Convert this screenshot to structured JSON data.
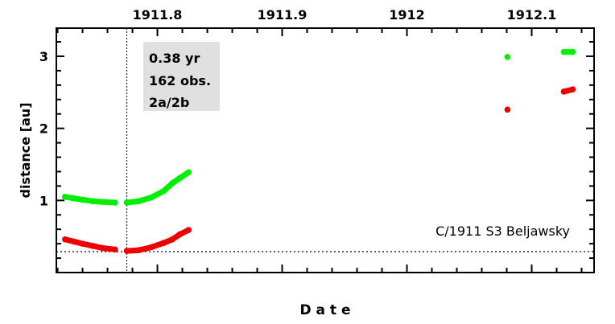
{
  "chart_data": {
    "type": "scatter",
    "title": "",
    "xlabel": "D a t e",
    "ylabel": "distance [au]",
    "xlim": [
      1911.719,
      1912.15
    ],
    "ylim": [
      0,
      3.39
    ],
    "x_ticks": [
      1911.8,
      1911.9,
      1912,
      1912.1
    ],
    "x_tick_labels": [
      "1911.8",
      "1911.9",
      "1912",
      "1912.1"
    ],
    "y_ticks": [
      1,
      2,
      3
    ],
    "y_tick_labels": [
      "1",
      "2",
      "3"
    ],
    "grid": false,
    "colors": {
      "green": "#00ee00",
      "red": "#ee0000"
    },
    "vline_x": 1911.7755,
    "hline_y": 0.29,
    "annotation_box": [
      "0.38 yr",
      "162 obs.",
      "2a/2b"
    ],
    "object_label": "C/1911 S3 Beljawsky",
    "series": [
      {
        "color": "#00ee00",
        "segments": [
          [
            [
              1911.726,
              1.05
            ],
            [
              1911.733,
              1.03
            ],
            [
              1911.74,
              1.01
            ],
            [
              1911.748,
              0.99
            ],
            [
              1911.756,
              0.98
            ],
            [
              1911.766,
              0.97
            ]
          ],
          [
            [
              1911.7755,
              0.97
            ],
            [
              1911.785,
              0.99
            ],
            [
              1911.795,
              1.04
            ],
            [
              1911.805,
              1.13
            ],
            [
              1911.812,
              1.24
            ],
            [
              1911.818,
              1.31
            ],
            [
              1911.825,
              1.39
            ]
          ],
          [
            [
              1912.0806,
              2.99
            ]
          ],
          [
            [
              1912.1258,
              3.06
            ],
            [
              1912.1329,
              3.06
            ]
          ]
        ]
      },
      {
        "color": "#ee0000",
        "segments": [
          [
            [
              1911.726,
              0.46
            ],
            [
              1911.733,
              0.43
            ],
            [
              1911.74,
              0.4
            ],
            [
              1911.748,
              0.37
            ],
            [
              1911.756,
              0.34
            ],
            [
              1911.766,
              0.32
            ]
          ],
          [
            [
              1911.7755,
              0.3
            ],
            [
              1911.785,
              0.31
            ],
            [
              1911.795,
              0.35
            ],
            [
              1911.805,
              0.41
            ],
            [
              1911.812,
              0.46
            ],
            [
              1911.818,
              0.53
            ],
            [
              1911.825,
              0.59
            ]
          ],
          [
            [
              1912.0806,
              2.26
            ]
          ],
          [
            [
              1912.1258,
              2.51
            ],
            [
              1912.1329,
              2.54
            ]
          ]
        ]
      }
    ]
  }
}
